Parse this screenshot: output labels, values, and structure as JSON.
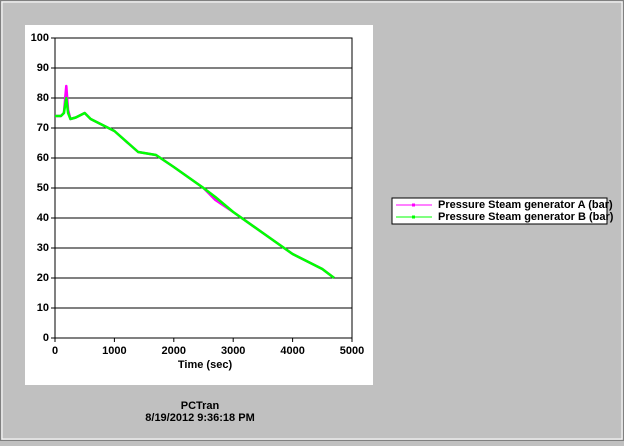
{
  "chart_data": {
    "type": "line",
    "x": [
      0,
      100,
      150,
      190,
      220,
      260,
      350,
      500,
      600,
      1000,
      1400,
      1700,
      2000,
      2500,
      2700,
      3000,
      3500,
      4000,
      4500,
      4700
    ],
    "series": [
      {
        "name": "Pressure Steam generator A (bar)",
        "color": "#ff00ff",
        "values": [
          74,
          74,
          75,
          84,
          76,
          73,
          73.5,
          75,
          73,
          69,
          62,
          61,
          57,
          50,
          46,
          42,
          35,
          28,
          23,
          20
        ]
      },
      {
        "name": "Pressure Steam generator B (bar)",
        "color": "#00ff00",
        "values": [
          74,
          74,
          75,
          80,
          75,
          73,
          73.5,
          75,
          73,
          69,
          62,
          61,
          57,
          50,
          47,
          42,
          35,
          28,
          23,
          20
        ]
      }
    ],
    "xlabel": "Time (sec)",
    "xlim": [
      0,
      5000
    ],
    "xticks": [
      0,
      1000,
      2000,
      3000,
      4000,
      5000
    ],
    "ylim": [
      0,
      100
    ],
    "yticks": [
      0,
      10,
      20,
      30,
      40,
      50,
      60,
      70,
      80,
      90,
      100
    ],
    "grid": true,
    "legend": "right",
    "annotations": [
      "PCTran",
      "8/19/2012 9:36:18 PM"
    ]
  }
}
